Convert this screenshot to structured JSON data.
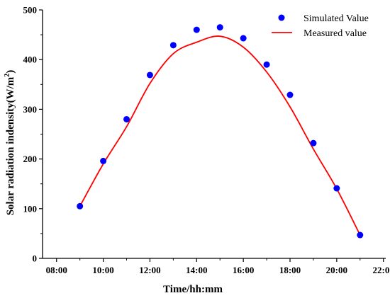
{
  "chart_data": {
    "type": "line",
    "xlabel": "Time/hh:mm",
    "ylabel_main": "Solar radiation indensity(W/m",
    "ylabel_sup": "2",
    "ylabel_close": ")",
    "xlim": [
      7.4,
      22.1
    ],
    "ylim": [
      0,
      500
    ],
    "xticks": [
      {
        "value": 8,
        "label": "08:00"
      },
      {
        "value": 10,
        "label": "10:00"
      },
      {
        "value": 12,
        "label": "12:00"
      },
      {
        "value": 14,
        "label": "14:00"
      },
      {
        "value": 16,
        "label": "16:00"
      },
      {
        "value": 18,
        "label": "18:00"
      },
      {
        "value": 20,
        "label": "20:00"
      },
      {
        "value": 22,
        "label": "22:00"
      }
    ],
    "yticks": [
      {
        "value": 0,
        "label": "0"
      },
      {
        "value": 100,
        "label": "100"
      },
      {
        "value": 200,
        "label": "200"
      },
      {
        "value": 300,
        "label": "300"
      },
      {
        "value": 400,
        "label": "400"
      },
      {
        "value": 500,
        "label": "500"
      }
    ],
    "legend_position": "top-right",
    "series": [
      {
        "name": "Simulated Value",
        "kind": "scatter",
        "color": "#0000ff",
        "x": [
          9,
          10,
          11,
          12,
          13,
          14,
          15,
          16,
          17,
          18,
          19,
          20,
          21
        ],
        "y": [
          105,
          196,
          280,
          369,
          429,
          460,
          465,
          443,
          390,
          329,
          232,
          141,
          47
        ]
      },
      {
        "name": "Measured value",
        "kind": "line",
        "color": "#ff0000",
        "x": [
          9,
          10,
          11,
          12,
          13,
          14,
          15,
          16,
          17,
          18,
          19,
          20,
          21
        ],
        "y": [
          105,
          190,
          265,
          352,
          412,
          435,
          447,
          425,
          375,
          305,
          220,
          140,
          47
        ]
      }
    ]
  }
}
